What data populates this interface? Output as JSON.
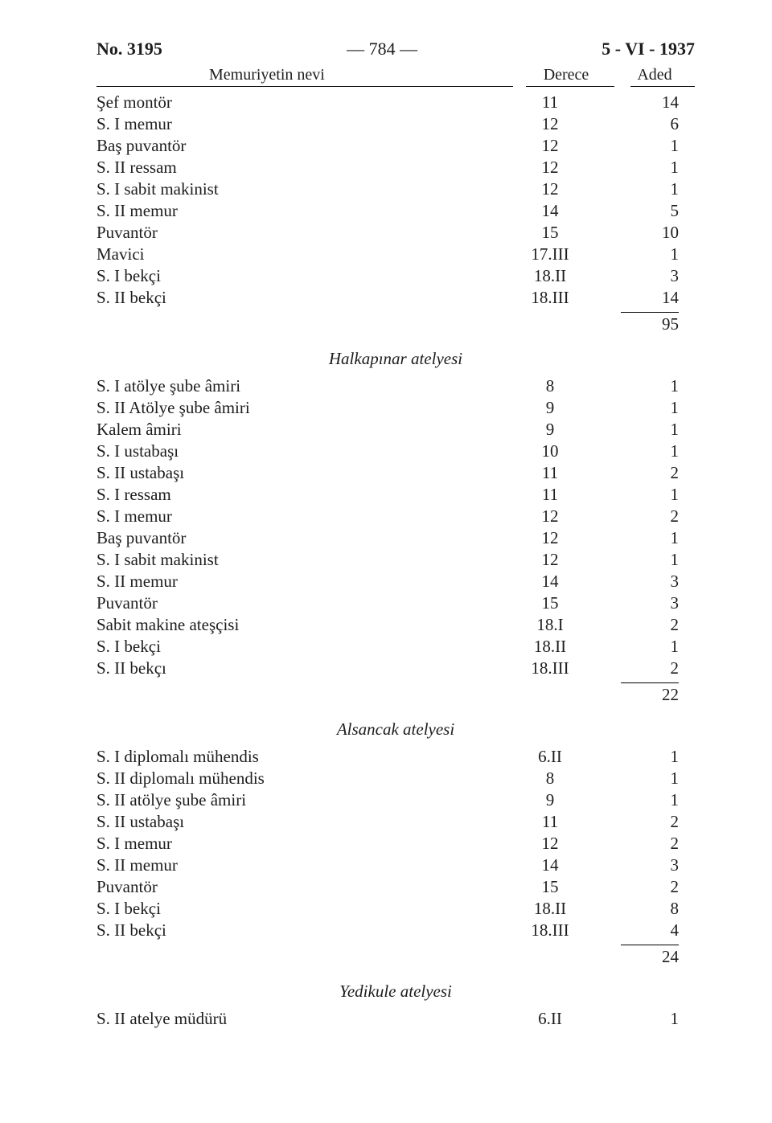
{
  "header": {
    "left": "No. 3195",
    "center": "— 784 —",
    "right": "5 - VI - 1937"
  },
  "columns": {
    "name": "Memuriyetin nevi",
    "derece": "Derece",
    "aded": "Aded"
  },
  "sections": [
    {
      "rows": [
        {
          "name": "Şef montör",
          "derece": "11",
          "aded": "14"
        },
        {
          "name": "S. I memur",
          "derece": "12",
          "aded": "6"
        },
        {
          "name": "Baş puvantör",
          "derece": "12",
          "aded": "1"
        },
        {
          "name": "S. II ressam",
          "derece": "12",
          "aded": "1"
        },
        {
          "name": "S. I sabit makinist",
          "derece": "12",
          "aded": "1"
        },
        {
          "name": "S. II memur",
          "derece": "14",
          "aded": "5"
        },
        {
          "name": "Puvantör",
          "derece": "15",
          "aded": "10"
        },
        {
          "name": "Mavici",
          "derece": "17.III",
          "aded": "1"
        },
        {
          "name": "S. I bekçi",
          "derece": "18.II",
          "aded": "3"
        },
        {
          "name": "S. II bekçi",
          "derece": "18.III",
          "aded": "14"
        }
      ],
      "total": "95"
    },
    {
      "title": "Halkapınar atelyesi",
      "rows": [
        {
          "name": "S. I atölye şube âmiri",
          "derece": "8",
          "aded": "1"
        },
        {
          "name": "S. II Atölye şube âmiri",
          "derece": "9",
          "aded": "1"
        },
        {
          "name": "Kalem âmiri",
          "derece": "9",
          "aded": "1"
        },
        {
          "name": "S. I ustabaşı",
          "derece": "10",
          "aded": "1"
        },
        {
          "name": "S. II ustabaşı",
          "derece": "11",
          "aded": "2"
        },
        {
          "name": "S. I ressam",
          "derece": "11",
          "aded": "1"
        },
        {
          "name": "S. I memur",
          "derece": "12",
          "aded": "2"
        },
        {
          "name": "Baş puvantör",
          "derece": "12",
          "aded": "1"
        },
        {
          "name": "S. I sabit makinist",
          "derece": "12",
          "aded": "1"
        },
        {
          "name": "S. II memur",
          "derece": "14",
          "aded": "3"
        },
        {
          "name": "Puvantör",
          "derece": "15",
          "aded": "3"
        },
        {
          "name": "Sabit makine ateşçisi",
          "derece": "18.I",
          "aded": "2"
        },
        {
          "name": "S. I bekçi",
          "derece": "18.II",
          "aded": "1"
        },
        {
          "name": "S. II bekçı",
          "derece": "18.III",
          "aded": "2"
        }
      ],
      "total": "22"
    },
    {
      "title": "Alsancak atelyesi",
      "rows": [
        {
          "name": "S. I diplomalı mühendis",
          "derece": "6.II",
          "aded": "1"
        },
        {
          "name": "S. II diplomalı mühendis",
          "derece": "8",
          "aded": "1"
        },
        {
          "name": "S. II atölye şube âmiri",
          "derece": "9",
          "aded": "1"
        },
        {
          "name": "S. II ustabaşı",
          "derece": "11",
          "aded": "2"
        },
        {
          "name": "S. I memur",
          "derece": "12",
          "aded": "2"
        },
        {
          "name": "S. II memur",
          "derece": "14",
          "aded": "3"
        },
        {
          "name": "Puvantör",
          "derece": "15",
          "aded": "2"
        },
        {
          "name": "S. I bekçi",
          "derece": "18.II",
          "aded": "8"
        },
        {
          "name": "S. II bekçi",
          "derece": "18.III",
          "aded": "4"
        }
      ],
      "total": "24"
    },
    {
      "title": "Yedikule atelyesi",
      "rows": [
        {
          "name": "S. II atelye müdürü",
          "derece": "6.II",
          "aded": "1"
        }
      ]
    }
  ]
}
